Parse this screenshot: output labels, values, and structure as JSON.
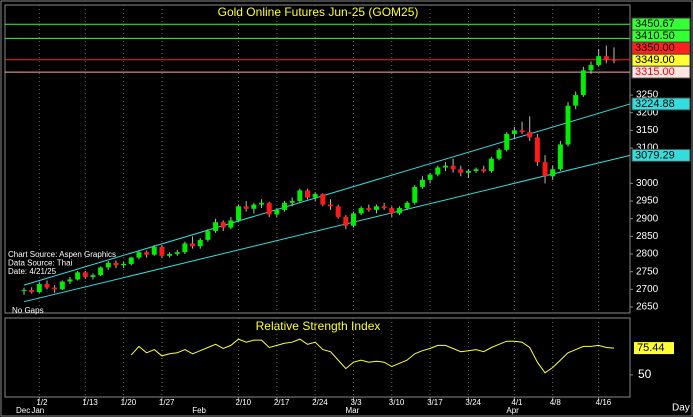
{
  "chart_data": [
    {
      "type": "candlestick",
      "title": "Gold Online Futures Jun-25 (GOM25)",
      "x": [
        "12/30",
        "12/31",
        "1/2",
        "1/3",
        "1/6",
        "1/7",
        "1/8",
        "1/10",
        "1/13",
        "1/14",
        "1/15",
        "1/16",
        "1/17",
        "1/20",
        "1/21",
        "1/22",
        "1/23",
        "1/24",
        "1/27",
        "1/28",
        "1/29",
        "1/30",
        "1/31",
        "2/3",
        "2/4",
        "2/5",
        "2/6",
        "2/7",
        "2/10",
        "2/11",
        "2/12",
        "2/13",
        "2/14",
        "2/17",
        "2/18",
        "2/19",
        "2/20",
        "2/21",
        "2/24",
        "2/25",
        "2/26",
        "2/27",
        "2/28",
        "3/3",
        "3/4",
        "3/5",
        "3/6",
        "3/7",
        "3/10",
        "3/11",
        "3/12",
        "3/13",
        "3/14",
        "3/17",
        "3/18",
        "3/19",
        "3/20",
        "3/21",
        "3/24",
        "3/25",
        "3/26",
        "3/27",
        "3/28",
        "3/31",
        "4/1",
        "4/2",
        "4/3",
        "4/4",
        "4/7",
        "4/8",
        "4/9",
        "4/10",
        "4/11",
        "4/14",
        "4/15",
        "4/16",
        "4/17",
        "4/21"
      ],
      "open": [
        2695,
        2698,
        2692,
        2715,
        2705,
        2700,
        2722,
        2728,
        2748,
        2735,
        2740,
        2762,
        2775,
        2768,
        2772,
        2790,
        2805,
        2798,
        2820,
        2795,
        2800,
        2805,
        2830,
        2822,
        2840,
        2865,
        2890,
        2875,
        2895,
        2935,
        2928,
        2940,
        2945,
        2912,
        2925,
        2945,
        2950,
        2980,
        2960,
        2970,
        2940,
        2935,
        2905,
        2880,
        2915,
        2930,
        2925,
        2935,
        2930,
        2915,
        2930,
        2945,
        2990,
        3010,
        3025,
        3045,
        3050,
        3040,
        3030,
        3035,
        3040,
        3035,
        3070,
        3095,
        3140,
        3150,
        3145,
        3130,
        3060,
        3020,
        3040,
        3110,
        3220,
        3250,
        3320,
        3335,
        3360,
        3350
      ],
      "high": [
        2705,
        2706,
        2720,
        2725,
        2712,
        2725,
        2735,
        2752,
        2752,
        2745,
        2765,
        2780,
        2782,
        2778,
        2792,
        2808,
        2810,
        2825,
        2825,
        2805,
        2812,
        2835,
        2850,
        2845,
        2870,
        2900,
        2895,
        2905,
        2940,
        2950,
        2945,
        2955,
        2948,
        2930,
        2950,
        2960,
        2985,
        2985,
        2975,
        2972,
        2955,
        2940,
        2910,
        2920,
        2935,
        2940,
        2940,
        2945,
        2935,
        2935,
        2950,
        2995,
        3020,
        3030,
        3050,
        3060,
        3070,
        3050,
        3040,
        3045,
        3050,
        3075,
        3100,
        3145,
        3160,
        3175,
        3190,
        3140,
        3080,
        3050,
        3120,
        3230,
        3260,
        3330,
        3345,
        3380,
        3390,
        3385
      ],
      "low": [
        2685,
        2688,
        2690,
        2700,
        2690,
        2698,
        2715,
        2725,
        2730,
        2728,
        2738,
        2755,
        2760,
        2760,
        2768,
        2785,
        2790,
        2795,
        2788,
        2790,
        2795,
        2800,
        2815,
        2815,
        2835,
        2860,
        2865,
        2870,
        2890,
        2920,
        2915,
        2930,
        2905,
        2905,
        2920,
        2935,
        2945,
        2955,
        2950,
        2935,
        2925,
        2900,
        2870,
        2875,
        2910,
        2920,
        2915,
        2925,
        2905,
        2910,
        2925,
        2940,
        2985,
        3000,
        3020,
        3035,
        3030,
        3020,
        3015,
        3030,
        3030,
        3030,
        3065,
        3090,
        3125,
        3140,
        3120,
        3050,
        3000,
        3010,
        3035,
        3105,
        3210,
        3245,
        3310,
        3330,
        3340,
        3340
      ],
      "close": [
        2698,
        2692,
        2715,
        2705,
        2700,
        2722,
        2728,
        2748,
        2735,
        2740,
        2762,
        2775,
        2768,
        2772,
        2790,
        2805,
        2798,
        2820,
        2795,
        2800,
        2805,
        2830,
        2822,
        2840,
        2865,
        2890,
        2875,
        2895,
        2935,
        2928,
        2940,
        2945,
        2912,
        2925,
        2945,
        2950,
        2980,
        2960,
        2970,
        2940,
        2935,
        2905,
        2880,
        2915,
        2930,
        2925,
        2935,
        2930,
        2915,
        2930,
        2945,
        2990,
        3010,
        3025,
        3045,
        3050,
        3040,
        3030,
        3035,
        3040,
        3035,
        3070,
        3095,
        3140,
        3150,
        3145,
        3130,
        3060,
        3020,
        3040,
        3110,
        3220,
        3250,
        3320,
        3335,
        3360,
        3350,
        3349
      ],
      "up_color": "#00ee00",
      "down_color": "#ff1a1a",
      "ylim": [
        2633,
        3505
      ],
      "yticks": [
        2650,
        2700,
        2750,
        2800,
        2850,
        2900,
        2950,
        3000,
        3100,
        3150,
        3200,
        3250
      ],
      "xticks": [
        "1/2",
        "1/13",
        "1/20",
        "1/27",
        "2/10",
        "2/17",
        "2/24",
        "3/3",
        "3/10",
        "3/17",
        "3/24",
        "4/1",
        "4/8",
        "4/16"
      ],
      "month_labels": [
        {
          "value": "12/30",
          "label": "Dec"
        },
        {
          "value": "1/2",
          "label": "Jan"
        },
        {
          "value": "2/3",
          "label": "Feb"
        },
        {
          "value": "3/3",
          "label": "Mar"
        },
        {
          "value": "4/1",
          "label": "Apr"
        }
      ],
      "x_label": "Day",
      "grid": true,
      "price_levels": [
        {
          "value": 3450.67,
          "label": "3450.67",
          "color": "#33ff33",
          "text_color": "#000000",
          "line": true
        },
        {
          "value": 3410.5,
          "label": "3410.50",
          "color": "#33ff33",
          "text_color": "#000000",
          "line": true
        },
        {
          "value": 3350,
          "label": "3350.00",
          "color": "#ff2020",
          "text_color": "#000000",
          "line": true
        },
        {
          "value": 3349,
          "label": "3349.00",
          "color": "#ffff33",
          "text_color": "#000000",
          "line": false
        },
        {
          "value": 3315,
          "label": "3315.00",
          "color": "#ffe4e4",
          "text_color": "#ff0000",
          "line": true
        }
      ],
      "channel": {
        "color": "#33dddd",
        "start": "12/30",
        "lines": [
          {
            "start": 2712,
            "end": {
              "value": 3224.88,
              "label": "3224.88"
            }
          },
          {
            "start": 2665,
            "end": {
              "value": 3079.29,
              "label": "3079.29"
            }
          }
        ]
      },
      "notes": [
        "Chart Source: Aspen Graphics",
        "Data Source: Thai",
        "Date:   4/21/25"
      ],
      "footnote": "No Gaps"
    },
    {
      "type": "line",
      "title": "Relative Strength Index",
      "color": "#ffff33",
      "values": [
        null,
        null,
        null,
        null,
        null,
        null,
        null,
        null,
        null,
        null,
        null,
        null,
        null,
        null,
        69,
        77,
        71,
        74,
        68,
        70,
        71,
        74,
        70,
        73,
        76,
        79,
        75,
        78,
        84,
        81,
        83,
        83,
        76,
        78,
        80,
        81,
        84,
        79,
        81,
        74,
        72,
        64,
        56,
        62,
        64,
        62,
        63,
        62,
        58,
        61,
        64,
        70,
        73,
        75,
        78,
        78,
        75,
        72,
        73,
        74,
        72,
        76,
        79,
        82,
        82,
        81,
        76,
        62,
        52,
        57,
        64,
        71,
        74,
        77,
        77,
        78,
        76,
        75.44
      ],
      "ylim": [
        29,
        104
      ],
      "yticks": [
        50
      ]
    }
  ]
}
